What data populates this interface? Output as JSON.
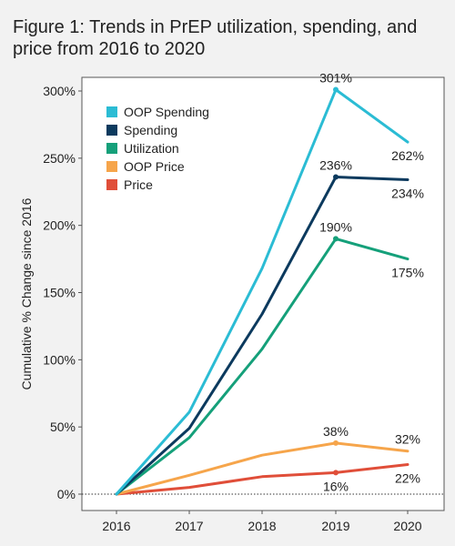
{
  "chart_data": {
    "type": "line",
    "title": "Figure 1: Trends in PrEP utilization, spending, and price from 2016 to 2020",
    "xlabel": "",
    "ylabel": "Cumulative % Change since 2016",
    "categories": [
      "2016",
      "2017",
      "2018",
      "2019",
      "2020"
    ],
    "ylim": [
      -10,
      310
    ],
    "yticks": [
      0,
      50,
      100,
      150,
      200,
      250,
      300
    ],
    "ytick_labels": [
      "0%",
      "50%",
      "100%",
      "150%",
      "200%",
      "250%",
      "300%"
    ],
    "grid": false,
    "legend": "top-left",
    "series": [
      {
        "name": "OOP Spending",
        "color": "#2bbcd4",
        "values": [
          0,
          61,
          168,
          301,
          262
        ]
      },
      {
        "name": "Spending",
        "color": "#0c3a5e",
        "values": [
          0,
          49,
          134,
          236,
          234
        ]
      },
      {
        "name": "Utilization",
        "color": "#15a07a",
        "values": [
          0,
          42,
          108,
          190,
          175
        ]
      },
      {
        "name": "OOP Price",
        "color": "#f6a54b",
        "values": [
          0,
          14,
          29,
          38,
          32
        ]
      },
      {
        "name": "Price",
        "color": "#e04e39",
        "values": [
          0,
          5,
          13,
          16,
          22
        ]
      }
    ],
    "data_labels": [
      {
        "series": "OOP Spending",
        "text": "301%",
        "x": "2019",
        "y": 301,
        "pos": "above"
      },
      {
        "series": "OOP Spending",
        "text": "262%",
        "x": "2020",
        "y": 262,
        "pos": "below"
      },
      {
        "series": "Spending",
        "text": "236%",
        "x": "2019",
        "y": 236,
        "pos": "above"
      },
      {
        "series": "Spending",
        "text": "234%",
        "x": "2020",
        "y": 234,
        "pos": "below"
      },
      {
        "series": "Utilization",
        "text": "190%",
        "x": "2019",
        "y": 190,
        "pos": "above"
      },
      {
        "series": "Utilization",
        "text": "175%",
        "x": "2020",
        "y": 175,
        "pos": "below"
      },
      {
        "series": "OOP Price",
        "text": "38%",
        "x": "2019",
        "y": 38,
        "pos": "above"
      },
      {
        "series": "OOP Price",
        "text": "32%",
        "x": "2020",
        "y": 32,
        "pos": "above"
      },
      {
        "series": "Price",
        "text": "16%",
        "x": "2019",
        "y": 16,
        "pos": "below"
      },
      {
        "series": "Price",
        "text": "22%",
        "x": "2020",
        "y": 22,
        "pos": "below"
      }
    ],
    "markers_at": [
      "2019"
    ]
  }
}
